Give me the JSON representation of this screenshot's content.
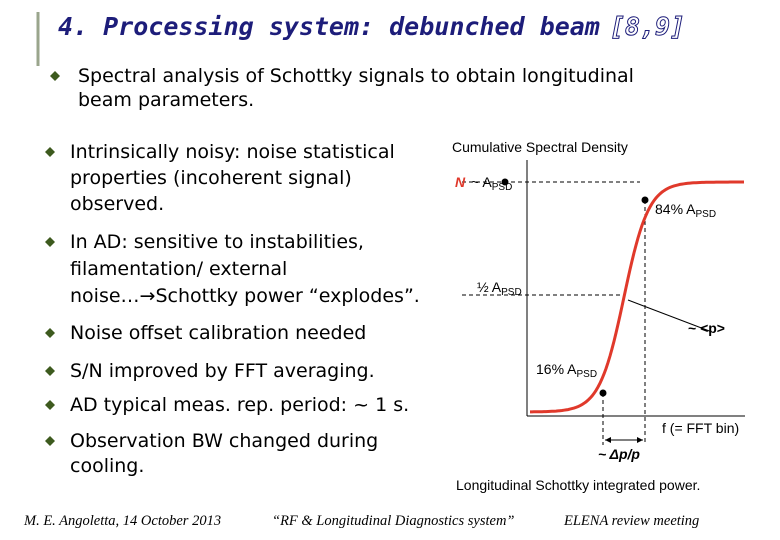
{
  "title": {
    "text": "4. Processing system: debunched beam",
    "ref": "[8,9]"
  },
  "bullets": [
    {
      "lines": [
        "Spectral analysis of Schottky signals to obtain longitudinal",
        "beam parameters."
      ]
    },
    {
      "lines": [
        "Intrinsically noisy: noise statistical",
        "properties (incoherent signal)",
        "observed."
      ]
    },
    {
      "lines": [
        "In AD: sensitive to instabilities,",
        "filamentation/ external",
        "noise…→Schottky power “explodes”."
      ]
    },
    {
      "lines": [
        "Noise offset calibration needed"
      ]
    },
    {
      "lines": [
        "S/N improved by FFT averaging."
      ]
    },
    {
      "lines": [
        "AD typical meas. rep. period: ~ 1 s."
      ]
    },
    {
      "lines": [
        "Observation BW changed during",
        "cooling."
      ]
    }
  ],
  "figure": {
    "title": "Cumulative Spectral Density",
    "n_label": {
      "symbol": "N",
      "text": "~ A",
      "sub": "PSD"
    },
    "p84_label": {
      "text": "84% A",
      "sub": "PSD"
    },
    "half_label": {
      "text": "½ A",
      "sub": "PSD"
    },
    "p16_label": {
      "text": "16% A",
      "sub": "PSD"
    },
    "mean_label": "~ <p>",
    "x_label": "f (= FFT bin)",
    "width_label": "~ Δp/p",
    "caption": "Longitudinal Schottky integrated power."
  },
  "footer": {
    "left": "M. E. Angoletta, 14 October 2013",
    "center": "“RF & Longitudinal Diagnostics system”",
    "right": "ELENA review meeting"
  }
}
